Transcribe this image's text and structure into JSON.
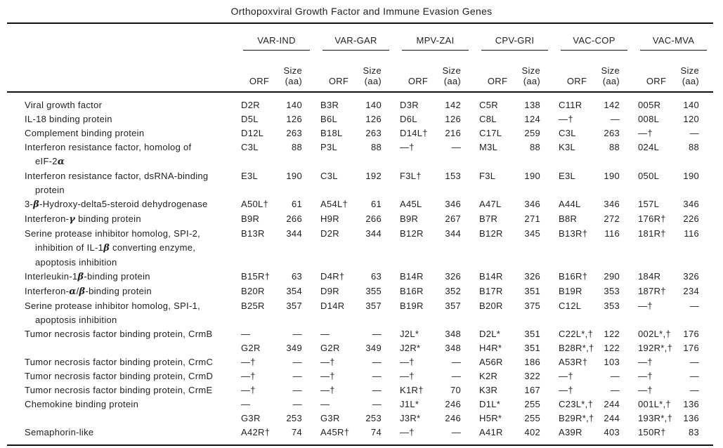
{
  "title": "Orthopoxviral Growth Factor and Immune Evasion Genes",
  "table": {
    "groups": [
      "VAR-IND",
      "VAR-GAR",
      "MPV-ZAI",
      "CPV-GRI",
      "VAC-COP",
      "VAC-MVA"
    ],
    "subheaders": {
      "orf": "ORF",
      "size_line1": "Size",
      "size_line2": "(aa)"
    },
    "rows": [
      {
        "label": [
          "Viral growth factor"
        ],
        "cells": [
          [
            "D2R",
            "140"
          ],
          [
            "B3R",
            "140"
          ],
          [
            "D3R",
            "142"
          ],
          [
            "C5R",
            "138"
          ],
          [
            "C11R",
            "142"
          ],
          [
            "005R",
            "140"
          ]
        ]
      },
      {
        "label": [
          "IL-18 binding protein"
        ],
        "cells": [
          [
            "D5L",
            "126"
          ],
          [
            "B6L",
            "126"
          ],
          [
            "D6L",
            "126"
          ],
          [
            "C8L",
            "124"
          ],
          [
            "—†",
            "—"
          ],
          [
            "008L",
            "120"
          ]
        ]
      },
      {
        "label": [
          "Complement binding protein"
        ],
        "cells": [
          [
            "D12L",
            "263"
          ],
          [
            "B18L",
            "263"
          ],
          [
            "D14L†",
            "216"
          ],
          [
            "C17L",
            "259"
          ],
          [
            "C3L",
            "263"
          ],
          [
            "—†",
            "—"
          ]
        ]
      },
      {
        "label": [
          "Interferon resistance factor, homolog of",
          "eIF-2α"
        ],
        "cells": [
          [
            "C3L",
            "88"
          ],
          [
            "P3L",
            "88"
          ],
          [
            "—†",
            "—"
          ],
          [
            "M3L",
            "88"
          ],
          [
            "K3L",
            "88"
          ],
          [
            "024L",
            "88"
          ]
        ]
      },
      {
        "label": [
          "Interferon resistance factor, dsRNA-binding",
          "protein"
        ],
        "cells": [
          [
            "E3L",
            "190"
          ],
          [
            "C3L",
            "192"
          ],
          [
            "F3L†",
            "153"
          ],
          [
            "F3L",
            "190"
          ],
          [
            "E3L",
            "190"
          ],
          [
            "050L",
            "190"
          ]
        ]
      },
      {
        "label": [
          "3-β-Hydroxy-delta5-steroid dehydrogenase"
        ],
        "cells": [
          [
            "A50L†",
            "61"
          ],
          [
            "A54L†",
            "61"
          ],
          [
            "A45L",
            "346"
          ],
          [
            "A47L",
            "346"
          ],
          [
            "A44L",
            "346"
          ],
          [
            "157L",
            "346"
          ]
        ]
      },
      {
        "label": [
          "Interferon-γ binding protein"
        ],
        "cells": [
          [
            "B9R",
            "266"
          ],
          [
            "H9R",
            "266"
          ],
          [
            "B9R",
            "267"
          ],
          [
            "B7R",
            "271"
          ],
          [
            "B8R",
            "272"
          ],
          [
            "176R†",
            "226"
          ]
        ]
      },
      {
        "label": [
          "Serine protease inhibitor homolog, SPI-2,",
          "inhibition of IL-1β converting enzyme,",
          "apoptosis inhibition"
        ],
        "cells": [
          [
            "B13R",
            "344"
          ],
          [
            "D2R",
            "344"
          ],
          [
            "B12R",
            "344"
          ],
          [
            "B12R",
            "345"
          ],
          [
            "B13R†",
            "116"
          ],
          [
            "181R†",
            "116"
          ]
        ]
      },
      {
        "label": [
          "Interleukin-1β-binding protein"
        ],
        "cells": [
          [
            "B15R†",
            "63"
          ],
          [
            "D4R†",
            "63"
          ],
          [
            "B14R",
            "326"
          ],
          [
            "B14R",
            "326"
          ],
          [
            "B16R†",
            "290"
          ],
          [
            "184R",
            "326"
          ]
        ]
      },
      {
        "label": [
          "Interferon-α/β-binding protein"
        ],
        "cells": [
          [
            "B20R",
            "354"
          ],
          [
            "D9R",
            "355"
          ],
          [
            "B16R",
            "352"
          ],
          [
            "B17R",
            "351"
          ],
          [
            "B19R",
            "353"
          ],
          [
            "187R†",
            "234"
          ]
        ]
      },
      {
        "label": [
          "Serine protease inhibitor homolog, SPI-1,",
          "apoptosis inhibition"
        ],
        "cells": [
          [
            "B25R",
            "357"
          ],
          [
            "D14R",
            "357"
          ],
          [
            "B19R",
            "357"
          ],
          [
            "B20R",
            "375"
          ],
          [
            "C12L",
            "353"
          ],
          [
            "—†",
            "—"
          ]
        ]
      },
      {
        "label": [
          "Tumor necrosis factor binding protein, CrmB"
        ],
        "cells": [
          [
            "—",
            "—"
          ],
          [
            "—",
            "—"
          ],
          [
            "J2L*",
            "348"
          ],
          [
            "D2L*",
            "351"
          ],
          [
            "C22L*,†",
            "122"
          ],
          [
            "002L*,†",
            "176"
          ]
        ]
      },
      {
        "label": [
          ""
        ],
        "cells": [
          [
            "G2R",
            "349"
          ],
          [
            "G2R",
            "349"
          ],
          [
            "J2R*",
            "348"
          ],
          [
            "H4R*",
            "351"
          ],
          [
            "B28R*,†",
            "122"
          ],
          [
            "192R*,†",
            "176"
          ]
        ]
      },
      {
        "label": [
          "Tumor necrosis factor binding protein, CrmC"
        ],
        "cells": [
          [
            "—†",
            "—"
          ],
          [
            "—†",
            "—"
          ],
          [
            "—†",
            "—"
          ],
          [
            "A56R",
            "186"
          ],
          [
            "A53R†",
            "103"
          ],
          [
            "—†",
            "—"
          ]
        ]
      },
      {
        "label": [
          "Tumor necrosis factor binding protein, CrmD"
        ],
        "cells": [
          [
            "—†",
            "—"
          ],
          [
            "—†",
            "—"
          ],
          [
            "—†",
            "—"
          ],
          [
            "K2R",
            "322"
          ],
          [
            "—†",
            "—"
          ],
          [
            "—†",
            "—"
          ]
        ]
      },
      {
        "label": [
          "Tumor necrosis factor binding protein, CrmE"
        ],
        "cells": [
          [
            "—†",
            "—"
          ],
          [
            "—†",
            "—"
          ],
          [
            "K1R†",
            "70"
          ],
          [
            "K3R",
            "167"
          ],
          [
            "—†",
            "—"
          ],
          [
            "—†",
            "—"
          ]
        ]
      },
      {
        "label": [
          "Chemokine binding protein"
        ],
        "cells": [
          [
            "—",
            "—"
          ],
          [
            "—",
            "—"
          ],
          [
            "J1L*",
            "246"
          ],
          [
            "D1L*",
            "255"
          ],
          [
            "C23L*,†",
            "244"
          ],
          [
            "001L*,†",
            "136"
          ]
        ]
      },
      {
        "label": [
          ""
        ],
        "cells": [
          [
            "G3R",
            "253"
          ],
          [
            "G3R",
            "253"
          ],
          [
            "J3R*",
            "246"
          ],
          [
            "H5R*",
            "255"
          ],
          [
            "B29R*,†",
            "244"
          ],
          [
            "193R*,†",
            "136"
          ]
        ]
      },
      {
        "label": [
          "Semaphorin-like"
        ],
        "cells": [
          [
            "A42R†",
            "74"
          ],
          [
            "A45R†",
            "74"
          ],
          [
            "—†",
            "—"
          ],
          [
            "A41R",
            "402"
          ],
          [
            "A39R",
            "403"
          ],
          [
            "150R†",
            "83"
          ]
        ]
      }
    ]
  }
}
